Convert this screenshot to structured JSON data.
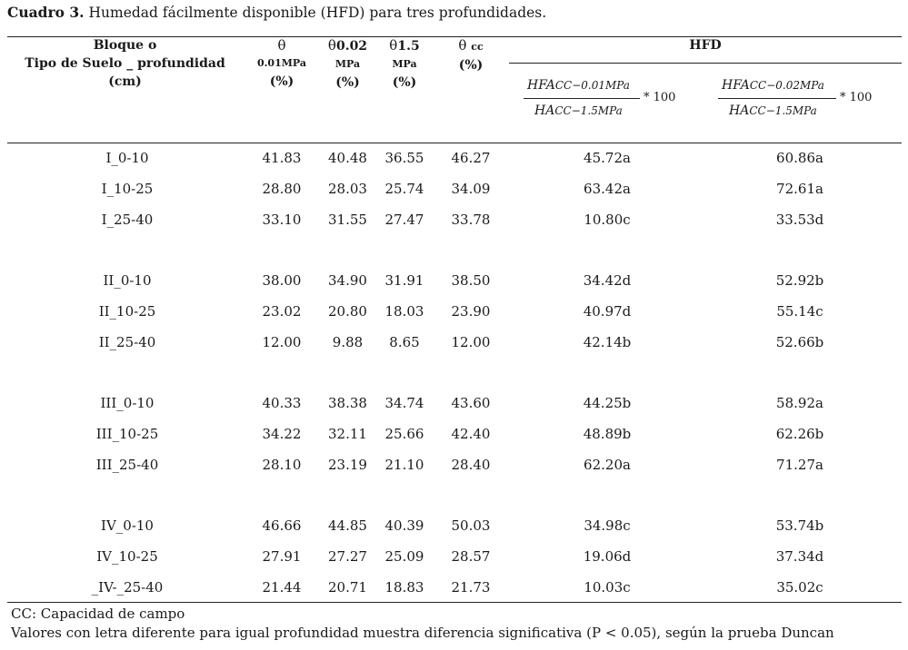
{
  "caption": {
    "label": "Cuadro 3.",
    "text": " Humedad fácilmente disponible (HFD) para tres profundidades."
  },
  "headers": {
    "block_line1": "Bloque o",
    "block_line2": "Tipo de Suelo _ profundidad",
    "block_line3": "(cm)",
    "t1_symbol": "θ",
    "t1_sub": "0.01MPa",
    "t1_unit": "(%)",
    "t2_symbol": "θ",
    "t2_sub": "0.02",
    "t2_line2": "MPa",
    "t2_unit": "(%)",
    "t3_symbol": "θ",
    "t3_sub": "1.5",
    "t3_line2": "MPa",
    "t3_unit": "(%)",
    "t4_symbol": "θ",
    "t4_sub": "cc",
    "t4_unit": "(%)",
    "hfd": "HFD",
    "formula1": {
      "num_main": "HFA",
      "num_sub": "CC−0.01MPa",
      "den_main": "HA",
      "den_sub": "CC−1.5MPa",
      "mult": "* 100"
    },
    "formula2": {
      "num_main": "HFA",
      "num_sub": "CC−0.02MPa",
      "den_main": "HA",
      "den_sub": "CC−1.5MPa",
      "mult": "* 100"
    }
  },
  "rows": [
    {
      "block": "I_0-10",
      "t1": "41.83",
      "t2": "40.48",
      "t3": "36.55",
      "t4": "46.27",
      "h1": "45.72a",
      "h2": "60.86a"
    },
    {
      "block": "I_10-25",
      "t1": "28.80",
      "t2": "28.03",
      "t3": "25.74",
      "t4": "34.09",
      "h1": "63.42a",
      "h2": "72.61a"
    },
    {
      "block": "I_25-40",
      "t1": "33.10",
      "t2": "31.55",
      "t3": "27.47",
      "t4": "33.78",
      "h1": "10.80c",
      "h2": "33.53d"
    },
    {
      "block": "II_0-10",
      "t1": "38.00",
      "t2": "34.90",
      "t3": "31.91",
      "t4": "38.50",
      "h1": "34.42d",
      "h2": "52.92b"
    },
    {
      "block": "II_10-25",
      "t1": "23.02",
      "t2": "20.80",
      "t3": "18.03",
      "t4": "23.90",
      "h1": "40.97d",
      "h2": "55.14c"
    },
    {
      "block": "II_25-40",
      "t1": "12.00",
      "t2": "9.88",
      "t3": "8.65",
      "t4": "12.00",
      "h1": "42.14b",
      "h2": "52.66b"
    },
    {
      "block": "III_0-10",
      "t1": "40.33",
      "t2": "38.38",
      "t3": "34.74",
      "t4": "43.60",
      "h1": "44.25b",
      "h2": "58.92a"
    },
    {
      "block": "III_10-25",
      "t1": "34.22",
      "t2": "32.11",
      "t3": "25.66",
      "t4": "42.40",
      "h1": "48.89b",
      "h2": "62.26b"
    },
    {
      "block": "III_25-40",
      "t1": "28.10",
      "t2": "23.19",
      "t3": "21.10",
      "t4": "28.40",
      "h1": "62.20a",
      "h2": "71.27a"
    },
    {
      "block": "IV_0-10",
      "t1": "46.66",
      "t2": "44.85",
      "t3": "40.39",
      "t4": "50.03",
      "h1": "34.98c",
      "h2": "53.74b"
    },
    {
      "block": "IV_10-25",
      "t1": "27.91",
      "t2": "27.27",
      "t3": "25.09",
      "t4": "28.57",
      "h1": "19.06d",
      "h2": "37.34d"
    },
    {
      "block": "_IV-_25-40",
      "t1": "21.44",
      "t2": "20.71",
      "t3": "18.83",
      "t4": "21.73",
      "h1": "10.03c",
      "h2": "35.02c"
    }
  ],
  "notes": {
    "cc": "CC: Capacidad de campo",
    "duncan": "Valores con letra diferente para igual profundidad muestra diferencia significativa (P < 0.05), según la prueba Duncan"
  }
}
